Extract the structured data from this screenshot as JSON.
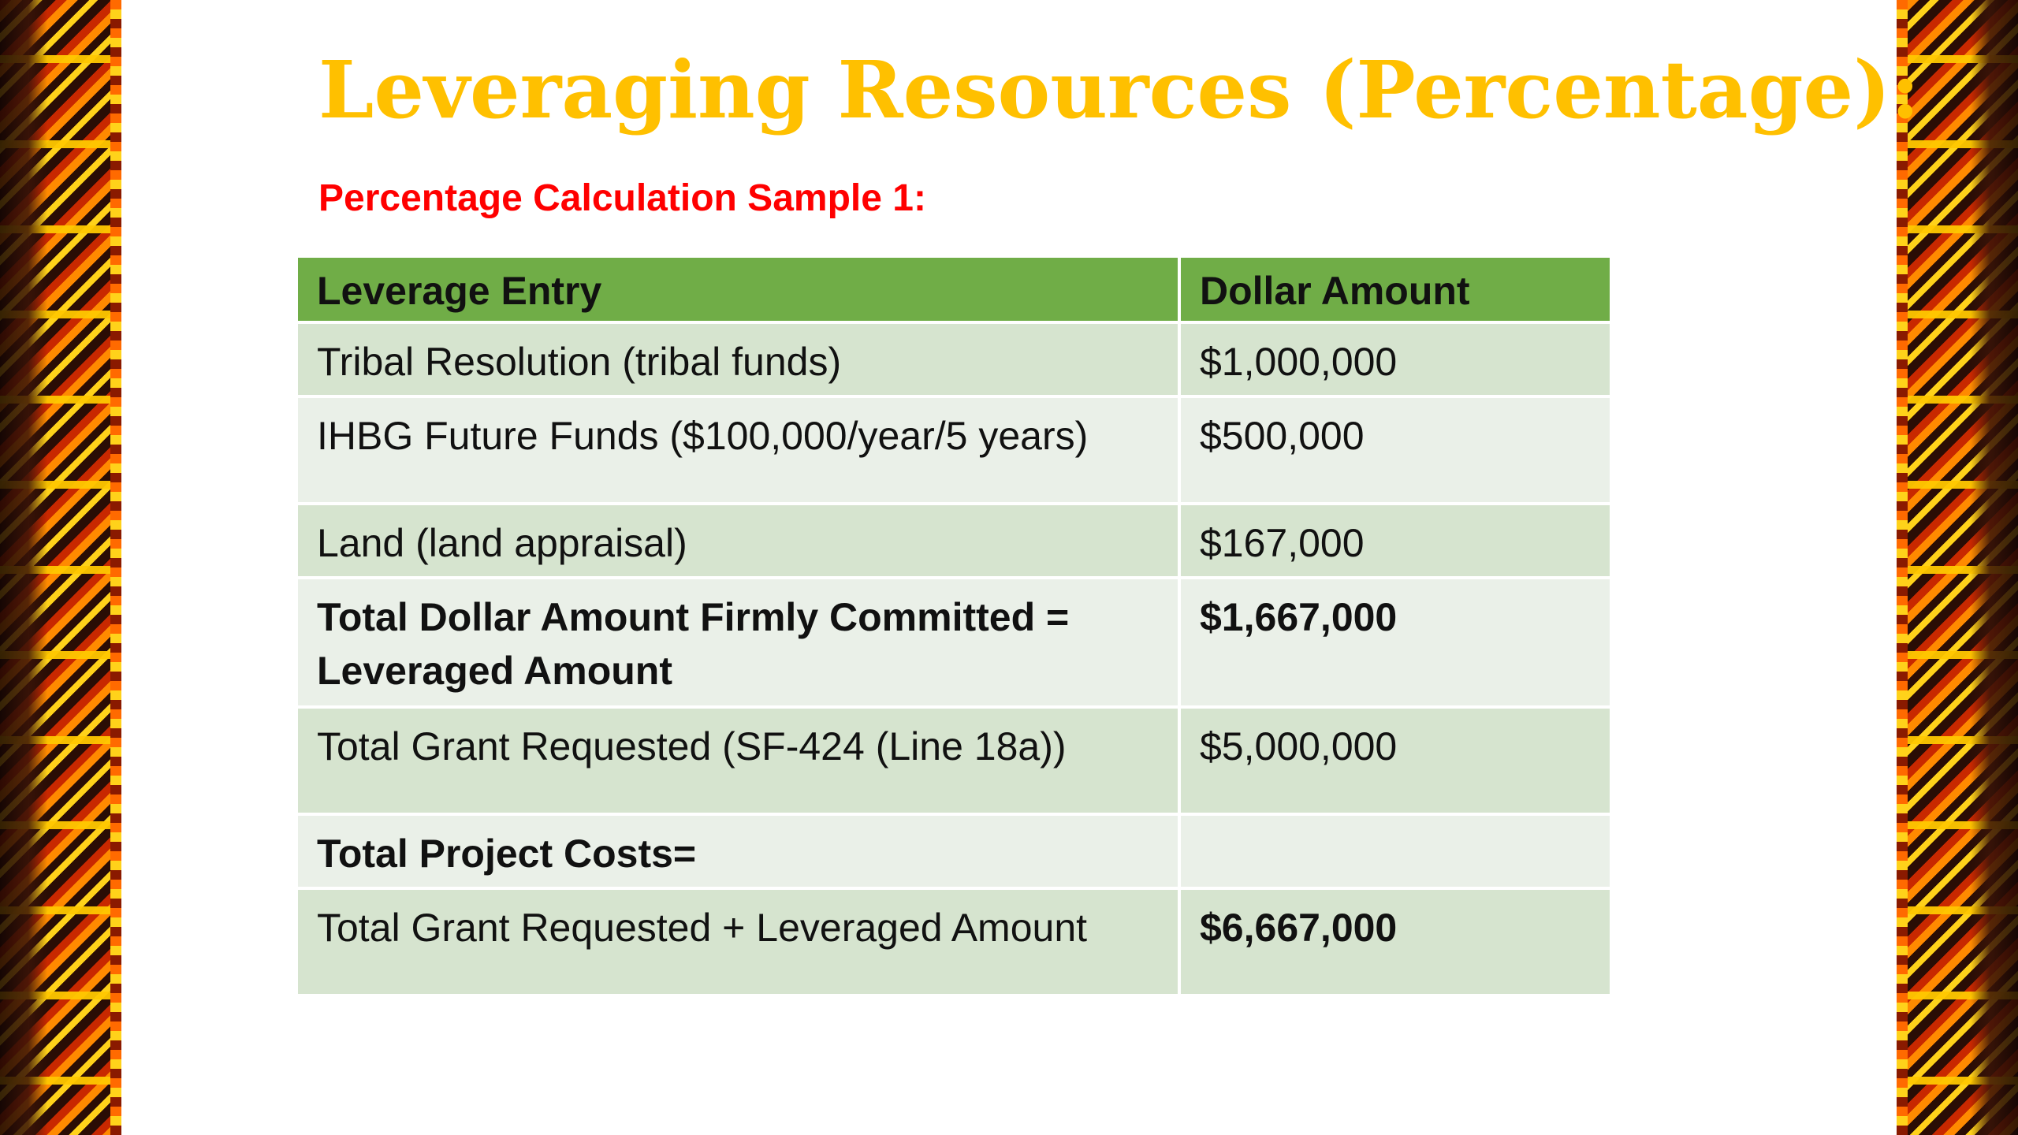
{
  "slide": {
    "title": "Leveraging Resources (Percentage):",
    "subtitle": "Percentage Calculation Sample 1:",
    "colors": {
      "title": "#ffc000",
      "subtitle": "#ff0000",
      "header_fill": "#70ad47",
      "row_fill_odd": "#d6e4cf",
      "row_fill_even": "#eaf0e8"
    }
  },
  "table": {
    "headers": [
      "Leverage Entry",
      "Dollar Amount"
    ],
    "rows": [
      {
        "entry": "Tribal Resolution (tribal funds)",
        "amount": "$1,000,000"
      },
      {
        "entry": "IHBG Future Funds ($100,000/year/5 years)",
        "amount": "$500,000"
      },
      {
        "entry": "Land (land appraisal)",
        "amount": "$167,000"
      },
      {
        "entry": "Total Dollar Amount Firmly Committed = Leveraged Amount",
        "amount": "$1,667,000"
      },
      {
        "entry": "Total Grant Requested (SF-424 (Line 18a))",
        "amount": "$5,000,000"
      },
      {
        "entry": "Total Project Costs=",
        "amount": ""
      },
      {
        "entry": "Total Grant Requested + Leveraged Amount",
        "amount": "$6,667,000"
      }
    ]
  }
}
